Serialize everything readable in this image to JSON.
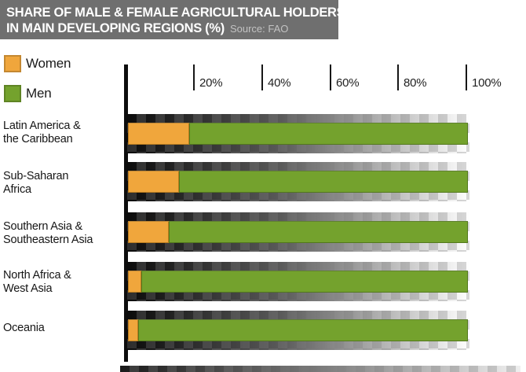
{
  "title": {
    "line1": "SHARE OF MALE & FEMALE AGRICULTURAL HOLDERS",
    "line2": "IN MAIN DEVELOPING REGIONS (%)",
    "source": "Source: FAO"
  },
  "legend": {
    "women_label": "Women",
    "men_label": "Men"
  },
  "colors": {
    "women": "#F0A63C",
    "men": "#74A22D",
    "title_bar": "#6F6F6F",
    "text": "#1A1A1A"
  },
  "axis_ticks": [
    "20%",
    "40%",
    "60%",
    "80%",
    "100%"
  ],
  "regions": [
    {
      "line1": "Latin America &",
      "line2": "the Caribbean"
    },
    {
      "line1": "Sub-Saharan",
      "line2": "Africa"
    },
    {
      "line1": "Southern Asia &",
      "line2": "Southeastern Asia"
    },
    {
      "line1": "North Africa &",
      "line2": "West Asia"
    },
    {
      "line1": "Oceania",
      "line2": ""
    }
  ],
  "chart_data": {
    "type": "bar",
    "orientation": "horizontal",
    "stacked": true,
    "title": "Share of male & female agricultural holders in main developing regions (%)",
    "source": "FAO",
    "categories": [
      "Latin America & the Caribbean",
      "Sub-Saharan Africa",
      "Southern Asia & Southeastern Asia",
      "North Africa & West Asia",
      "Oceania"
    ],
    "series": [
      {
        "name": "Women",
        "color": "#F0A63C",
        "values": [
          18,
          15,
          12,
          4,
          3
        ]
      },
      {
        "name": "Men",
        "color": "#74A22D",
        "values": [
          82,
          85,
          88,
          96,
          97
        ]
      }
    ],
    "xlim": [
      0,
      100
    ],
    "x_ticks": [
      20,
      40,
      60,
      80,
      100
    ],
    "grid": false,
    "legend_position": "top-left"
  }
}
